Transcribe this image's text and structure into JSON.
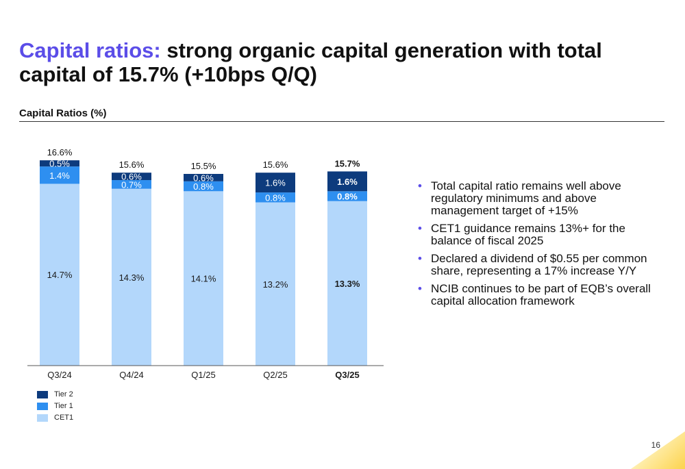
{
  "header": {
    "title_accent": "Capital ratios:",
    "title_rest": " strong organic capital generation with total capital of 15.7% (+10bps Q/Q)",
    "section_label": "Capital Ratios (%)"
  },
  "chart_data": {
    "type": "bar",
    "stacked": true,
    "categories": [
      "Q3/24",
      "Q4/24",
      "Q1/25",
      "Q2/25",
      "Q3/25"
    ],
    "highlight_category": "Q3/25",
    "series": [
      {
        "name": "CET1",
        "values": [
          14.7,
          14.3,
          14.1,
          13.2,
          13.3
        ],
        "labels": [
          "14.7%",
          "14.3%",
          "14.1%",
          "13.2%",
          "13.3%"
        ],
        "color": "#b3d7fb"
      },
      {
        "name": "Tier 1",
        "values": [
          1.4,
          0.7,
          0.8,
          0.8,
          0.8
        ],
        "labels": [
          "1.4%",
          "0.7%",
          "0.8%",
          "0.8%",
          "0.8%"
        ],
        "color": "#2e8ff0"
      },
      {
        "name": "Tier 2",
        "values": [
          0.5,
          0.6,
          0.6,
          1.6,
          1.6
        ],
        "labels": [
          "0.5%",
          "0.6%",
          "0.6%",
          "1.6%",
          "1.6%"
        ],
        "color": "#0d3b7d"
      }
    ],
    "totals": [
      "16.6%",
      "15.6%",
      "15.5%",
      "15.6%",
      "15.7%"
    ],
    "ylim": [
      0,
      18.6
    ],
    "grid": false,
    "legend_position": "bottom-left"
  },
  "legend": {
    "items": [
      {
        "label": "Tier 2",
        "color": "#0d3b7d"
      },
      {
        "label": "Tier 1",
        "color": "#2e8ff0"
      },
      {
        "label": "CET1",
        "color": "#b3d7fb"
      }
    ]
  },
  "bullets": {
    "marker": "•",
    "items": [
      "Total capital ratio remains well above regulatory minimums and above management target of +15%",
      "CET1 guidance remains 13%+ for the balance of fiscal 2025",
      "Declared a dividend of $0.55 per common share, representing a 17% increase Y/Y",
      "NCIB continues to be part of EQB’s overall capital allocation framework"
    ]
  },
  "footer": {
    "page_number": "16"
  }
}
